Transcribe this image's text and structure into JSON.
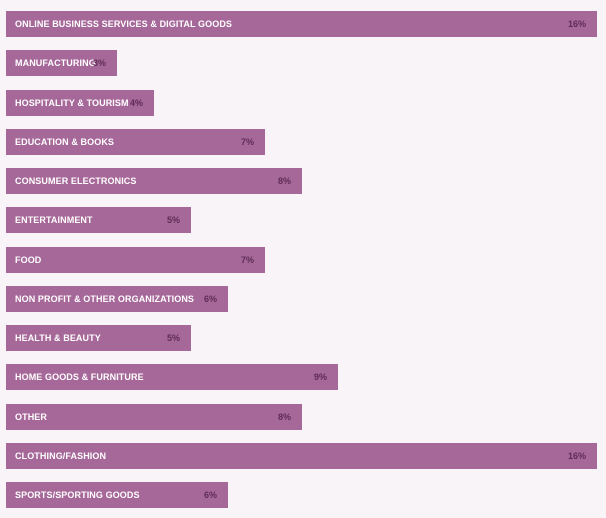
{
  "chart_data": {
    "type": "bar",
    "orientation": "horizontal",
    "categories": [
      "ONLINE BUSINESS SERVICES & DIGITAL GOODS",
      "MANUFACTURING",
      "HOSPITALITY & TOURISM",
      "EDUCATION & BOOKS",
      "CONSUMER ELECTRONICS",
      "ENTERTAINMENT",
      "FOOD",
      "NON PROFIT & OTHER ORGANIZATIONS",
      "HEALTH & BEAUTY",
      "HOME GOODS & FURNITURE",
      "OTHER",
      "CLOTHING/FASHION",
      "SPORTS/SPORTING GOODS"
    ],
    "values": [
      16,
      3,
      4,
      7,
      8,
      5,
      7,
      6,
      5,
      9,
      8,
      16,
      6
    ],
    "value_labels": [
      "16%",
      "3%",
      "4%",
      "7%",
      "8%",
      "5%",
      "7%",
      "6%",
      "5%",
      "9%",
      "8%",
      "16%",
      "6%"
    ],
    "xlim": [
      0,
      16
    ],
    "grid": false,
    "colors": {
      "bar": "#a66799",
      "value_text": "#5e2d55",
      "label_text": "#ffffff",
      "background": "#f8f4f8"
    }
  }
}
